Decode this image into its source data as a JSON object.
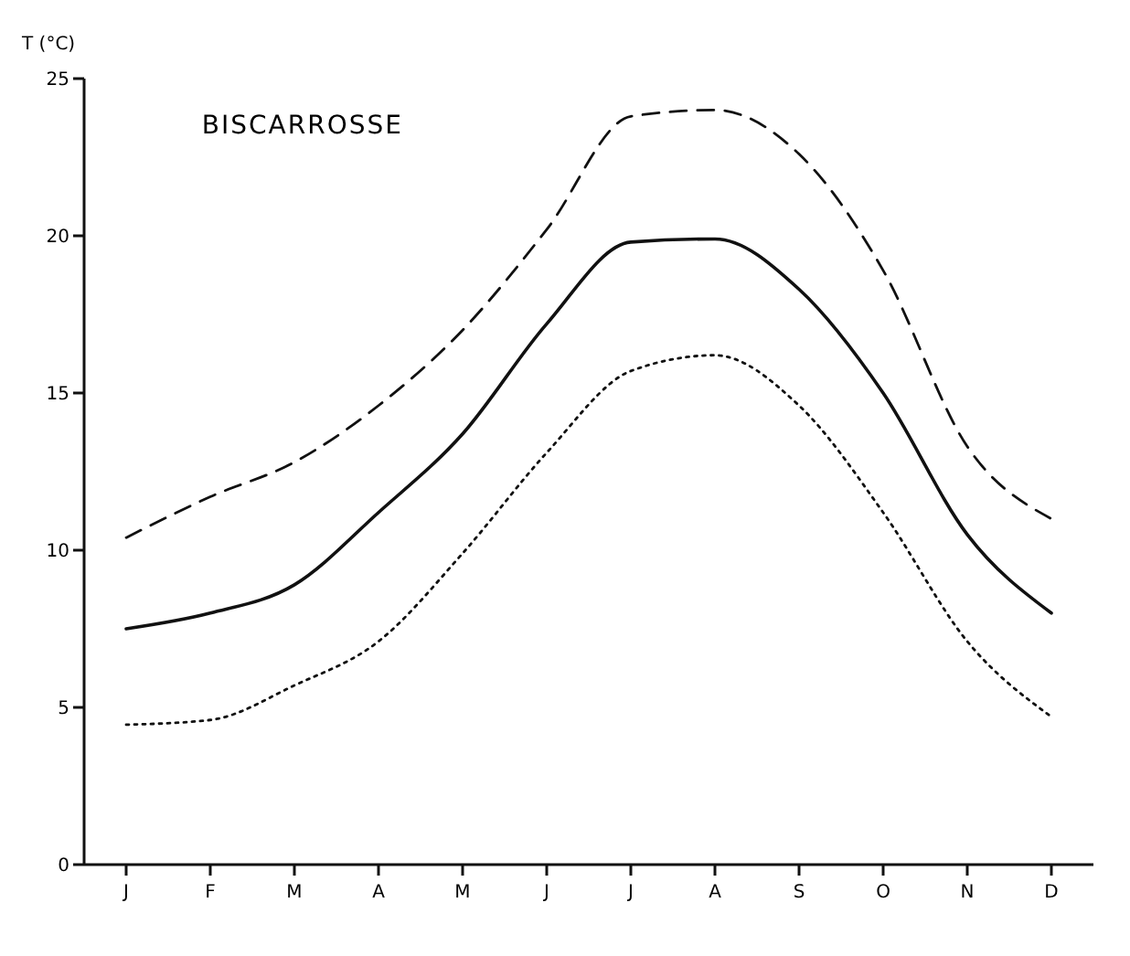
{
  "chart_data": {
    "type": "line",
    "title": "BISCARROSSE",
    "ylabel": "T (°C)",
    "categories": [
      "J",
      "F",
      "M",
      "A",
      "M",
      "J",
      "J",
      "A",
      "S",
      "O",
      "N",
      "D"
    ],
    "ylim": [
      0,
      25
    ],
    "yticks": [
      0,
      5,
      10,
      15,
      20,
      25
    ],
    "grid": false,
    "marker": "none",
    "series": [
      {
        "color": "#111111",
        "line_style": "dashed",
        "values": [
          10.4,
          11.7,
          12.8,
          14.6,
          17,
          20.2,
          23.8,
          24,
          22.6,
          18.9,
          13.3,
          11
        ]
      },
      {
        "color": "#111111",
        "line_style": "solid",
        "values": [
          7.5,
          8,
          8.9,
          11.2,
          13.7,
          17.2,
          19.8,
          19.9,
          18.3,
          15,
          10.5,
          8
        ]
      },
      {
        "color": "#111111",
        "line_style": "dotted",
        "values": [
          4.45,
          4.6,
          5.7,
          7.1,
          9.9,
          13.1,
          15.7,
          16.2,
          14.6,
          11.2,
          7.1,
          4.7
        ]
      }
    ]
  }
}
